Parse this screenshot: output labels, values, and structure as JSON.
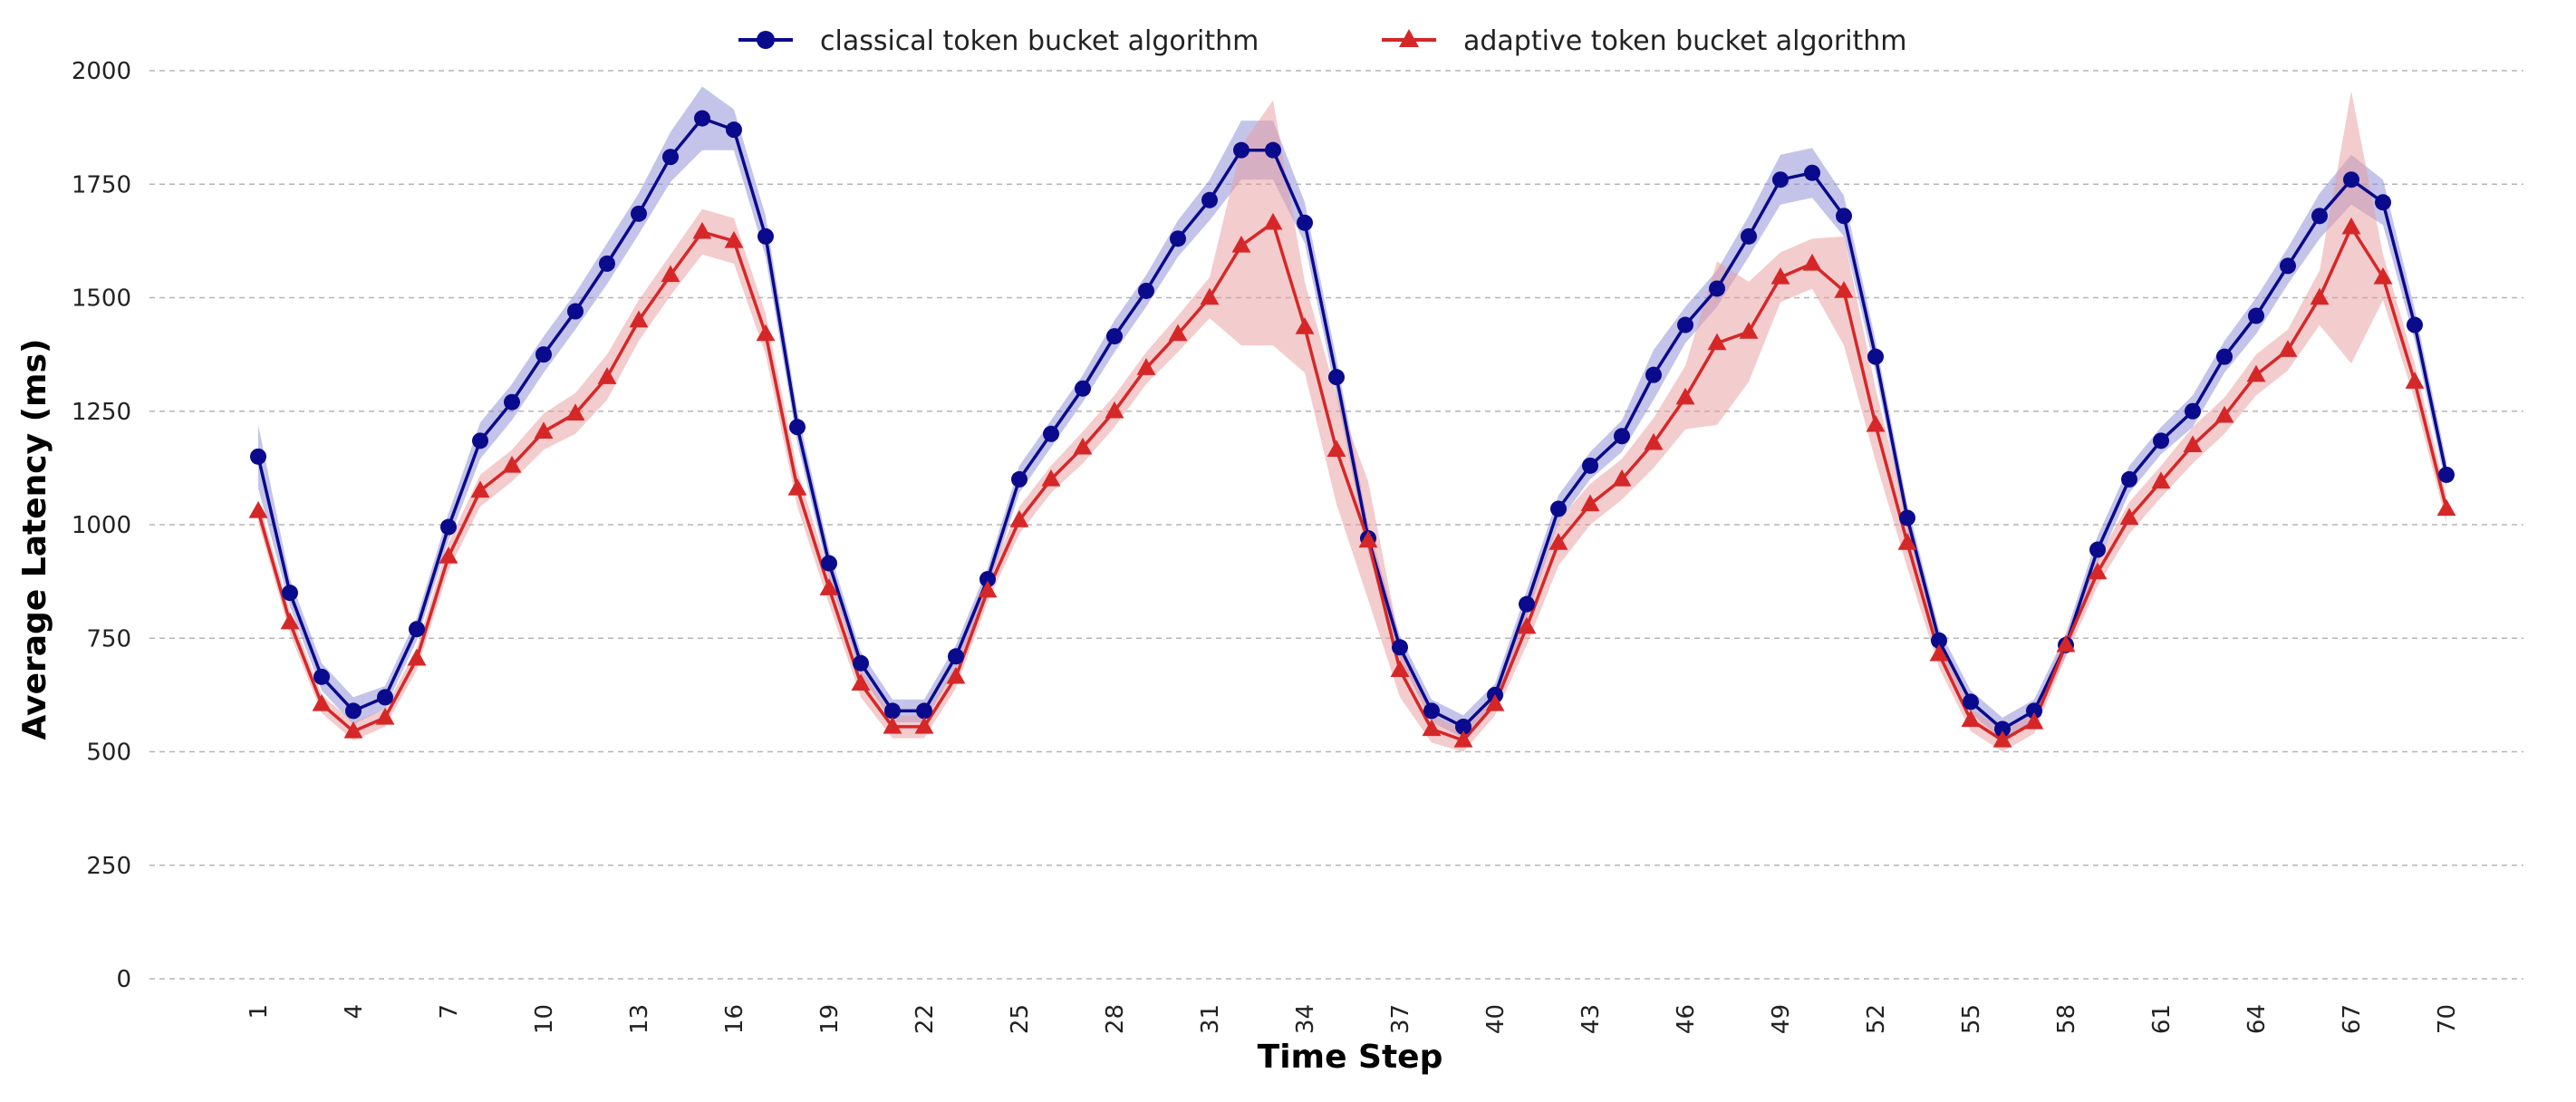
{
  "chart_data": {
    "type": "line",
    "title": "",
    "xlabel": "Time Step",
    "ylabel": "Average Latency (ms)",
    "xlim": [
      1,
      70
    ],
    "ylim": [
      0,
      2000
    ],
    "yticks": [
      0,
      250,
      500,
      750,
      1000,
      1250,
      1500,
      1750,
      2000
    ],
    "xticks": [
      1,
      4,
      7,
      10,
      13,
      16,
      19,
      22,
      25,
      28,
      31,
      34,
      37,
      40,
      43,
      46,
      49,
      52,
      55,
      58,
      61,
      64,
      67,
      70
    ],
    "grid": "horizontal dashed",
    "legend": "top-center",
    "x": [
      1,
      2,
      3,
      4,
      5,
      6,
      7,
      8,
      9,
      10,
      11,
      12,
      13,
      14,
      15,
      16,
      17,
      18,
      19,
      20,
      21,
      22,
      23,
      24,
      25,
      26,
      27,
      28,
      29,
      30,
      31,
      32,
      33,
      34,
      35,
      36,
      37,
      38,
      39,
      40,
      41,
      42,
      43,
      44,
      45,
      46,
      47,
      48,
      49,
      50,
      51,
      52,
      53,
      54,
      55,
      56,
      57,
      58,
      59,
      60,
      61,
      62,
      63,
      64,
      65,
      66,
      67,
      68,
      69,
      70
    ],
    "series": [
      {
        "name": "classical token bucket algorithm",
        "color": "#0a0a8c",
        "band_color": "#8a8ad6",
        "marker": "circle",
        "values": [
          1150,
          850,
          665,
          590,
          620,
          770,
          995,
          1185,
          1270,
          1375,
          1470,
          1575,
          1685,
          1810,
          1895,
          1870,
          1635,
          1215,
          915,
          695,
          590,
          590,
          710,
          880,
          1100,
          1200,
          1300,
          1415,
          1515,
          1630,
          1715,
          1825,
          1825,
          1665,
          1325,
          970,
          730,
          590,
          555,
          625,
          825,
          1035,
          1130,
          1195,
          1330,
          1440,
          1520,
          1635,
          1760,
          1775,
          1680,
          1370,
          1015,
          745,
          610,
          550,
          590,
          735,
          945,
          1100,
          1185,
          1250,
          1370,
          1460,
          1570,
          1680,
          1760,
          1710,
          1440,
          1110
        ],
        "band": [
          70,
          30,
          30,
          30,
          25,
          25,
          30,
          40,
          40,
          40,
          40,
          45,
          45,
          55,
          70,
          45,
          45,
          35,
          30,
          25,
          25,
          25,
          25,
          25,
          30,
          30,
          30,
          35,
          35,
          40,
          45,
          65,
          65,
          45,
          40,
          30,
          25,
          25,
          25,
          25,
          30,
          30,
          30,
          35,
          55,
          40,
          40,
          45,
          55,
          55,
          45,
          35,
          30,
          25,
          25,
          25,
          25,
          25,
          30,
          30,
          30,
          35,
          35,
          40,
          40,
          50,
          55,
          50,
          35,
          30
        ]
      },
      {
        "name": "adaptive token bucket algorithm",
        "color": "#d62728",
        "band_color": "#e89a9b",
        "marker": "triangle",
        "values": [
          1030,
          785,
          605,
          545,
          575,
          705,
          930,
          1075,
          1130,
          1205,
          1245,
          1325,
          1450,
          1550,
          1645,
          1625,
          1420,
          1080,
          860,
          650,
          555,
          555,
          665,
          855,
          1010,
          1100,
          1170,
          1250,
          1345,
          1420,
          1500,
          1615,
          1665,
          1435,
          1165,
          965,
          680,
          550,
          525,
          605,
          775,
          960,
          1045,
          1100,
          1180,
          1280,
          1400,
          1425,
          1545,
          1575,
          1515,
          1220,
          960,
          715,
          570,
          525,
          565,
          735,
          895,
          1015,
          1095,
          1175,
          1240,
          1330,
          1385,
          1500,
          1655,
          1545,
          1315,
          1035
        ],
        "band": [
          25,
          25,
          20,
          20,
          20,
          25,
          30,
          35,
          35,
          40,
          45,
          50,
          45,
          45,
          50,
          50,
          45,
          40,
          35,
          30,
          25,
          25,
          25,
          25,
          30,
          30,
          35,
          35,
          35,
          40,
          45,
          220,
          270,
          100,
          120,
          130,
          60,
          30,
          25,
          25,
          40,
          50,
          45,
          45,
          55,
          70,
          180,
          110,
          55,
          55,
          120,
          80,
          55,
          30,
          25,
          25,
          25,
          25,
          30,
          35,
          35,
          40,
          40,
          45,
          45,
          60,
          300,
          50,
          40,
          30
        ]
      }
    ]
  }
}
